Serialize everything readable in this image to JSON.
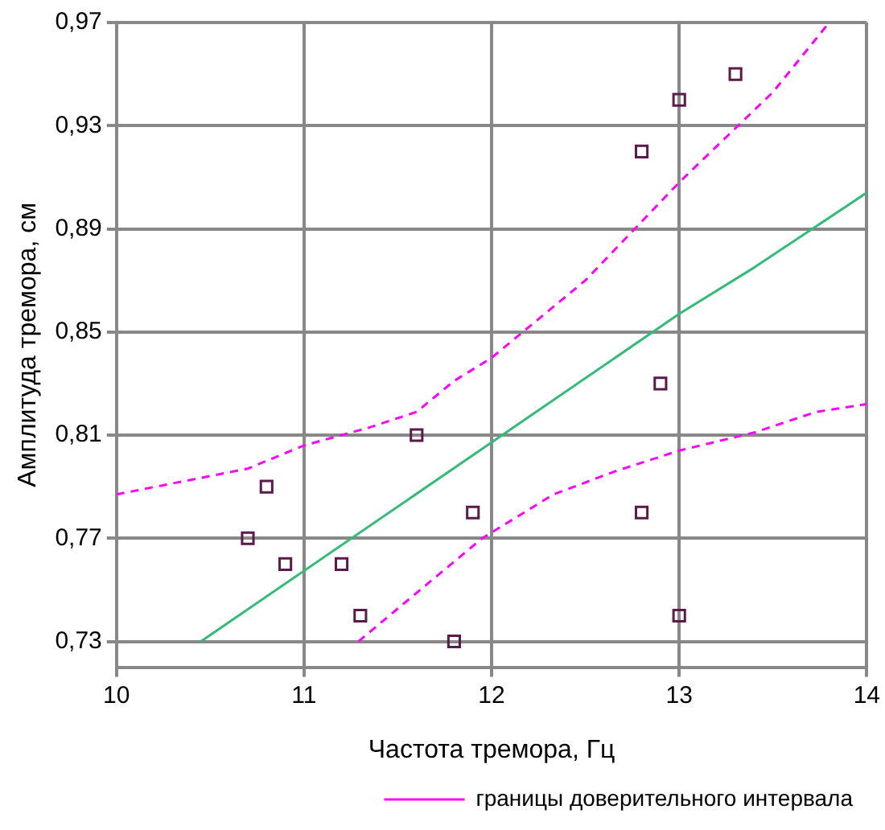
{
  "chart_data": {
    "type": "scatter",
    "xlabel": "Частота тремора, Гц",
    "ylabel": "Амплитуда тремора, см",
    "xlim": [
      10,
      14
    ],
    "xticks": [
      10,
      11,
      12,
      13,
      14
    ],
    "ylim": [
      0.72,
      0.97
    ],
    "yticks": [
      {
        "value": 0.73,
        "label": "0,73"
      },
      {
        "value": 0.77,
        "label": "0,77"
      },
      {
        "value": 0.81,
        "label": "0,81"
      },
      {
        "value": 0.85,
        "label": "0,85"
      },
      {
        "value": 0.89,
        "label": "0,89"
      },
      {
        "value": 0.93,
        "label": "0,93"
      },
      {
        "value": 0.97,
        "label": "0,97"
      }
    ],
    "grid": true,
    "legend": "bottom",
    "marker": "square",
    "series": [
      {
        "color": "#5a1a4a",
        "x": [
          10.7,
          10.8,
          10.9,
          11.2,
          11.3,
          11.6,
          11.8,
          11.9,
          12.8,
          12.9,
          13.0,
          12.8,
          13.0,
          13.3
        ],
        "values": [
          0.77,
          0.79,
          0.76,
          0.76,
          0.74,
          0.81,
          0.73,
          0.78,
          0.78,
          0.83,
          0.74,
          0.92,
          0.94,
          0.95
        ]
      },
      {
        "type": "line",
        "color": "#33bb77",
        "line_style": "solid",
        "marker": "none",
        "x": [
          10.45,
          13.0,
          13.4,
          14
        ],
        "values": [
          0.73,
          0.857,
          0.875,
          0.904
        ]
      },
      {
        "type": "line",
        "name": "границы доверительного интервала",
        "color": "#ff00ff",
        "line_style": "dashed",
        "marker": "none",
        "x": [
          10,
          10.7,
          11,
          11.35,
          11.6,
          11.8,
          12,
          12.5,
          13,
          13.5,
          13.8
        ],
        "values": [
          0.787,
          0.797,
          0.806,
          0.813,
          0.819,
          0.831,
          0.84,
          0.87,
          0.908,
          0.943,
          0.97
        ]
      },
      {
        "type": "line",
        "color": "#ff00ff",
        "line_style": "dashed",
        "marker": "none",
        "x": [
          11.29,
          11.57,
          11.95,
          12.33,
          12.66,
          13.0,
          13.4,
          13.73,
          14
        ],
        "values": [
          0.73,
          0.747,
          0.77,
          0.787,
          0.796,
          0.804,
          0.811,
          0.819,
          0.822
        ]
      }
    ]
  }
}
